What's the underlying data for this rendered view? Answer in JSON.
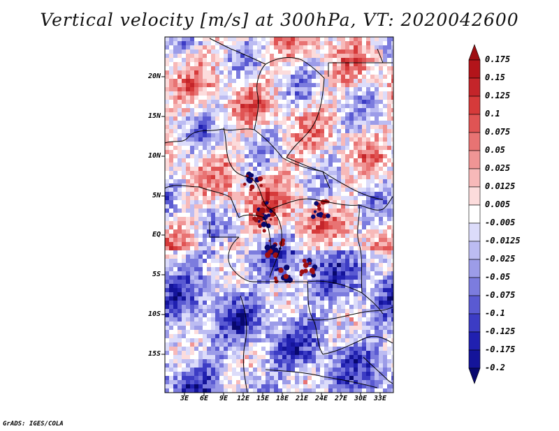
{
  "title": "Vertical velocity [m/s] at 300hPa, VT: 2020042600",
  "credit": "GrADS: IGES/COLA",
  "map": {
    "lat_labels": [
      "20N",
      "15N",
      "10N",
      "5N",
      "EQ",
      "5S",
      "10S",
      "15S"
    ],
    "lon_labels": [
      "3E",
      "6E",
      "9E",
      "12E",
      "15E",
      "18E",
      "21E",
      "24E",
      "27E",
      "30E",
      "33E"
    ],
    "lon_range": [
      0,
      35
    ],
    "lat_range": [
      -20,
      24.5
    ],
    "variable": "Vertical velocity",
    "level": "300hPa",
    "valid_time": "2020042600"
  },
  "colorbar": {
    "labels": [
      "0.175",
      "0.15",
      "0.125",
      "0.1",
      "0.075",
      "0.05",
      "0.025",
      "0.0125",
      "0.005",
      "-0.005",
      "-0.0125",
      "-0.025",
      "-0.05",
      "-0.075",
      "-0.1",
      "-0.125",
      "-0.175",
      "-0.2"
    ],
    "colors": [
      "#9e0f12",
      "#b3141a",
      "#c4252a",
      "#d63a3a",
      "#e05454",
      "#e87373",
      "#f09595",
      "#f7b9b9",
      "#fcdcdc",
      "#ffffff",
      "#dcdcfa",
      "#bcbcf2",
      "#9c9ce8",
      "#7c7cde",
      "#5a5ad2",
      "#3c3cc4",
      "#2020b0",
      "#14149a",
      "#08086e"
    ]
  }
}
